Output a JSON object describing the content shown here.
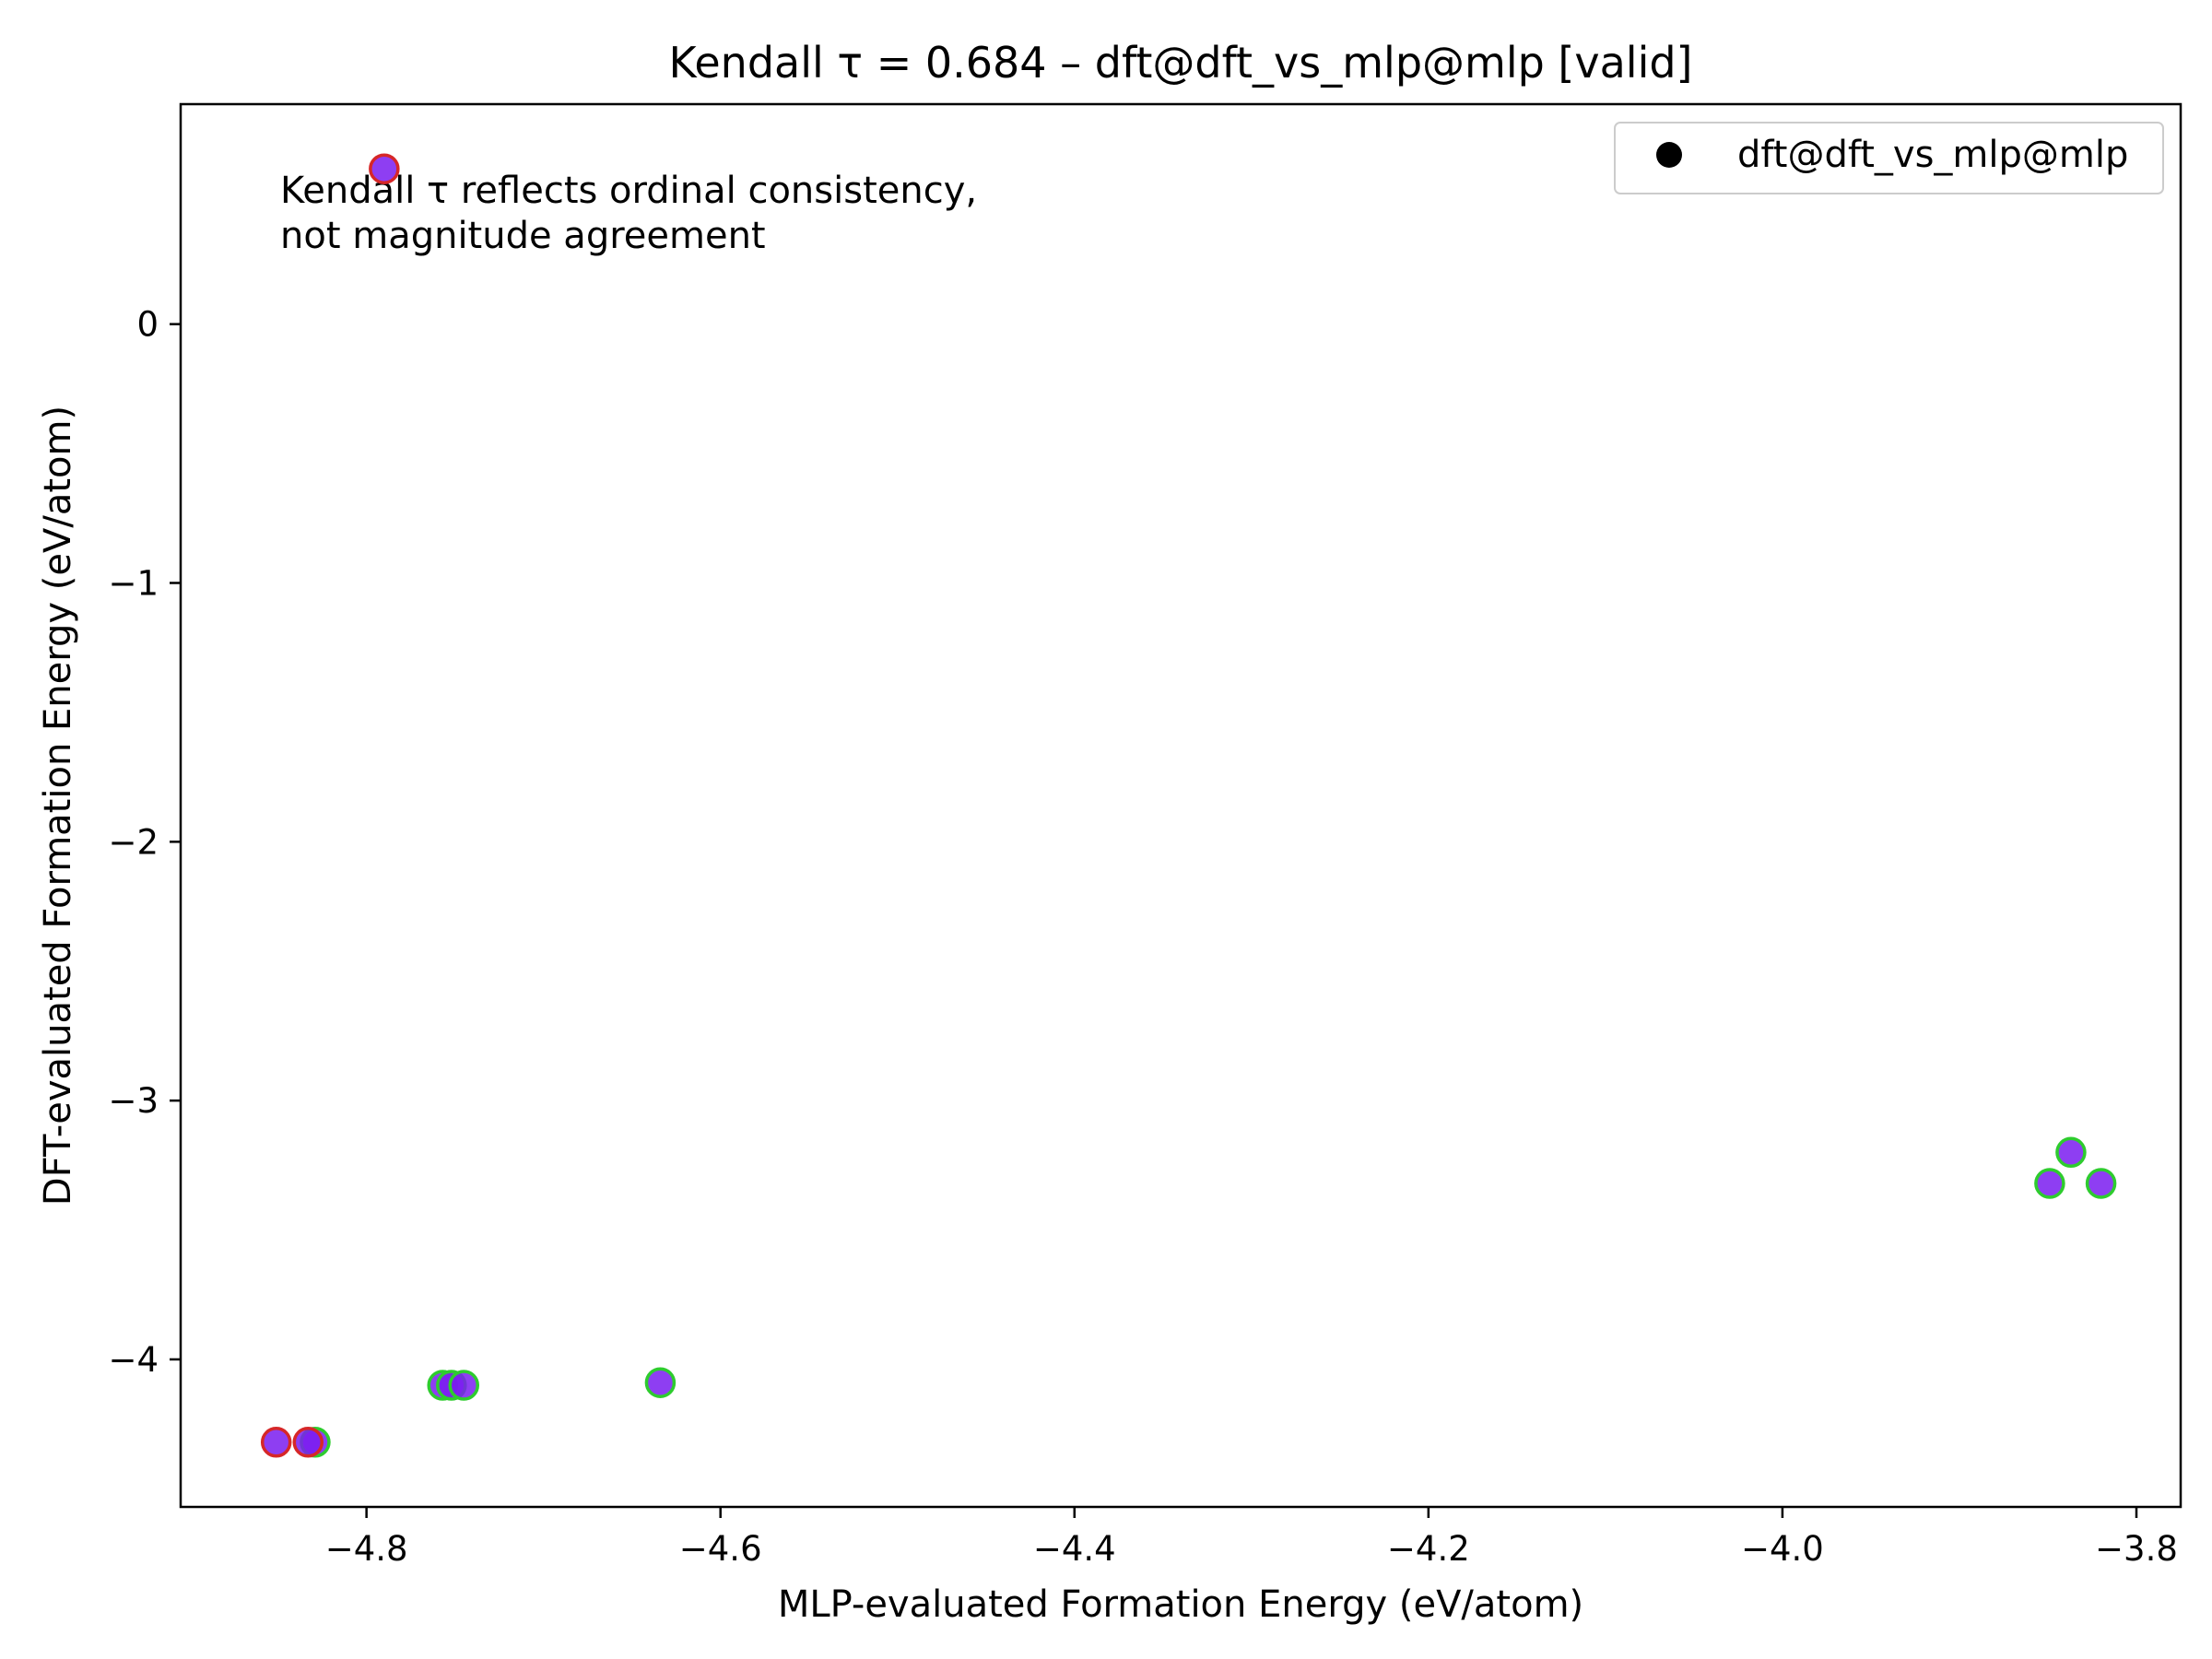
{
  "chart_data": {
    "type": "scatter",
    "title": "Kendall τ = 0.684 – dft@dft_vs_mlp@mlp [valid]",
    "xlabel": "MLP-evaluated Formation Energy (eV/atom)",
    "ylabel": "DFT-evaluated Formation Energy (eV/atom)",
    "xlim": [
      -4.905,
      -3.775
    ],
    "ylim": [
      -4.57,
      0.85
    ],
    "xticks": [
      -4.8,
      -4.6,
      -4.4,
      -4.2,
      -4.0,
      -3.8
    ],
    "xtick_labels": [
      "−4.8",
      "−4.6",
      "−4.4",
      "−4.2",
      "−4.0",
      "−3.8"
    ],
    "yticks": [
      0,
      -1,
      -2,
      -3,
      -4
    ],
    "ytick_labels": [
      "0",
      "−1",
      "−2",
      "−3",
      "−4"
    ],
    "grid": false,
    "legend": {
      "position": "top-right",
      "entries": [
        "dft@dft_vs_mlp@mlp"
      ]
    },
    "annotation": [
      "Kendall τ reflects ordinal consistency,",
      "not magnitude agreement"
    ],
    "colors": {
      "marker_fill": "#7a1cf0",
      "edge_green": "#2ecc2e",
      "edge_red": "#d62728",
      "legend_marker": "#000000"
    },
    "series": [
      {
        "name": "dft@dft_vs_mlp@mlp",
        "points": [
          {
            "x": -4.79,
            "y": 0.6,
            "edge": "red"
          },
          {
            "x": -4.851,
            "y": -4.32,
            "edge": "red"
          },
          {
            "x": -4.829,
            "y": -4.32,
            "edge": "green"
          },
          {
            "x": -4.833,
            "y": -4.32,
            "edge": "red"
          },
          {
            "x": -4.757,
            "y": -4.1,
            "edge": "green"
          },
          {
            "x": -4.752,
            "y": -4.1,
            "edge": "green"
          },
          {
            "x": -4.745,
            "y": -4.1,
            "edge": "green"
          },
          {
            "x": -4.634,
            "y": -4.09,
            "edge": "green"
          },
          {
            "x": -3.849,
            "y": -3.32,
            "edge": "green"
          },
          {
            "x": -3.837,
            "y": -3.2,
            "edge": "green"
          },
          {
            "x": -3.82,
            "y": -3.32,
            "edge": "green"
          }
        ]
      }
    ]
  }
}
